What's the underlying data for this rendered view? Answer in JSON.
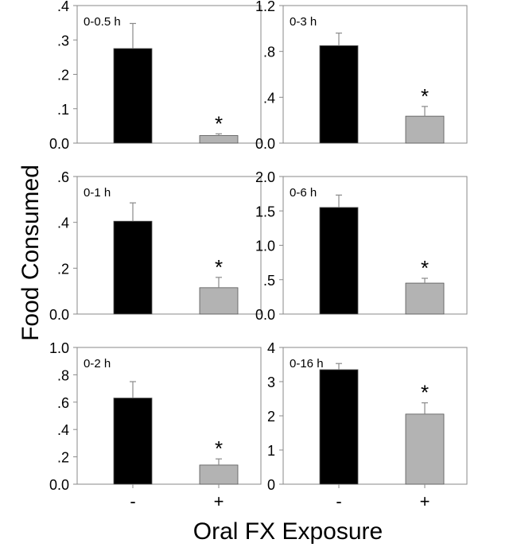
{
  "figure": {
    "ylabel": "Food Consumed",
    "xlabel": "Oral FX Exposure"
  },
  "chart_data": [
    {
      "type": "bar",
      "title": "0-0.5 h",
      "categories": [
        "-",
        "+"
      ],
      "values": [
        0.275,
        0.022
      ],
      "errors": [
        0.073,
        0.005
      ],
      "ylim": [
        0,
        0.4
      ],
      "yticks": [
        0,
        0.1,
        0.2,
        0.3,
        0.4
      ],
      "yticklabels": [
        "0.0",
        ".1",
        ".2",
        ".3",
        ".4"
      ],
      "significance": [
        "",
        "*"
      ],
      "colors": [
        "#000000",
        "#b3b3b3"
      ],
      "show_x_ticks": false
    },
    {
      "type": "bar",
      "title": "0-3 h",
      "categories": [
        "-",
        "+"
      ],
      "values": [
        0.85,
        0.235
      ],
      "errors": [
        0.11,
        0.085
      ],
      "ylim": [
        0,
        1.2
      ],
      "yticks": [
        0,
        0.4,
        0.8,
        1.2
      ],
      "yticklabels": [
        "0.0",
        ".4",
        ".8",
        "1.2"
      ],
      "significance": [
        "",
        "*"
      ],
      "colors": [
        "#000000",
        "#b3b3b3"
      ],
      "show_x_ticks": false
    },
    {
      "type": "bar",
      "title": "0-1 h",
      "categories": [
        "-",
        "+"
      ],
      "values": [
        0.405,
        0.115
      ],
      "errors": [
        0.08,
        0.045
      ],
      "ylim": [
        0,
        0.6
      ],
      "yticks": [
        0,
        0.2,
        0.4,
        0.6
      ],
      "yticklabels": [
        "0.0",
        ".2",
        ".4",
        ".6"
      ],
      "significance": [
        "",
        "*"
      ],
      "colors": [
        "#000000",
        "#b3b3b3"
      ],
      "show_x_ticks": false
    },
    {
      "type": "bar",
      "title": "0-6 h",
      "categories": [
        "-",
        "+"
      ],
      "values": [
        1.55,
        0.45
      ],
      "errors": [
        0.18,
        0.07
      ],
      "ylim": [
        0,
        2.0
      ],
      "yticks": [
        0,
        0.5,
        1.0,
        1.5,
        2.0
      ],
      "yticklabels": [
        "0.0",
        ".5",
        "1.0",
        "1.5",
        "2.0"
      ],
      "significance": [
        "",
        "*"
      ],
      "colors": [
        "#000000",
        "#b3b3b3"
      ],
      "show_x_ticks": false
    },
    {
      "type": "bar",
      "title": "0-2 h",
      "categories": [
        "-",
        "+"
      ],
      "values": [
        0.63,
        0.14
      ],
      "errors": [
        0.12,
        0.045
      ],
      "ylim": [
        0,
        1.0
      ],
      "yticks": [
        0,
        0.2,
        0.4,
        0.6,
        0.8,
        1.0
      ],
      "yticklabels": [
        "0.0",
        ".2",
        ".4",
        ".6",
        ".8",
        "1.0"
      ],
      "significance": [
        "",
        "*"
      ],
      "colors": [
        "#000000",
        "#b3b3b3"
      ],
      "show_x_ticks": true
    },
    {
      "type": "bar",
      "title": "0-16 h",
      "categories": [
        "-",
        "+"
      ],
      "values": [
        3.35,
        2.05
      ],
      "errors": [
        0.18,
        0.33
      ],
      "ylim": [
        0,
        4
      ],
      "yticks": [
        0,
        1,
        2,
        3,
        4
      ],
      "yticklabels": [
        "0",
        "1",
        "2",
        "3",
        "4"
      ],
      "significance": [
        "",
        "*"
      ],
      "colors": [
        "#000000",
        "#b3b3b3"
      ],
      "show_x_ticks": true
    }
  ]
}
